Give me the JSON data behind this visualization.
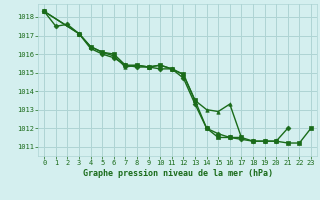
{
  "background_color": "#d4efef",
  "grid_color": "#aed4d4",
  "line_color": "#1a6b1a",
  "marker_color": "#1a6b1a",
  "xlabel": "Graphe pression niveau de la mer (hPa)",
  "xlabel_color": "#1a6b1a",
  "tick_color": "#1a6b1a",
  "xlim": [
    -0.5,
    23.5
  ],
  "ylim": [
    1010.5,
    1018.7
  ],
  "yticks": [
    1011,
    1012,
    1013,
    1014,
    1015,
    1016,
    1017,
    1018
  ],
  "xticks": [
    0,
    1,
    2,
    3,
    4,
    5,
    6,
    7,
    8,
    9,
    10,
    11,
    12,
    13,
    14,
    15,
    16,
    17,
    18,
    19,
    20,
    21,
    22,
    23
  ],
  "series": [
    {
      "x": [
        0,
        1,
        2,
        3,
        4,
        5,
        6,
        7,
        8,
        9,
        10,
        11,
        12,
        13,
        14,
        15,
        16,
        17,
        18,
        19,
        20,
        21
      ],
      "y": [
        1018.3,
        1017.5,
        1017.6,
        1017.1,
        1016.3,
        1016.0,
        1015.8,
        1015.4,
        1015.3,
        1015.3,
        1015.2,
        1015.2,
        1014.7,
        1013.3,
        1012.0,
        1011.7,
        1011.5,
        1011.4,
        1011.3,
        1011.3,
        1011.3,
        1012.0
      ],
      "marker": "D",
      "linewidth": 1.0,
      "markersize": 2.5
    },
    {
      "x": [
        0,
        3,
        4,
        5,
        6,
        7,
        8,
        9,
        10,
        11,
        12,
        13,
        14,
        15,
        16,
        17
      ],
      "y": [
        1018.3,
        1017.1,
        1016.4,
        1016.1,
        1015.9,
        1015.3,
        1015.4,
        1015.3,
        1015.4,
        1015.2,
        1014.9,
        1013.5,
        1013.0,
        1012.9,
        1013.3,
        1011.5
      ],
      "marker": "^",
      "linewidth": 1.0,
      "markersize": 2.5
    },
    {
      "x": [
        0,
        3,
        4,
        5,
        6,
        7,
        8,
        9,
        10,
        11,
        12,
        13,
        14,
        15,
        16,
        17,
        18,
        19,
        20,
        21,
        22,
        23
      ],
      "y": [
        1018.3,
        1017.1,
        1016.4,
        1016.1,
        1016.0,
        1015.4,
        1015.4,
        1015.3,
        1015.4,
        1015.2,
        1014.9,
        1013.5,
        1012.0,
        1011.5,
        1011.5,
        1011.5,
        1011.3,
        1011.3,
        1011.3,
        1011.2,
        1011.2,
        1012.0
      ],
      "marker": "s",
      "linewidth": 1.0,
      "markersize": 2.5
    }
  ]
}
